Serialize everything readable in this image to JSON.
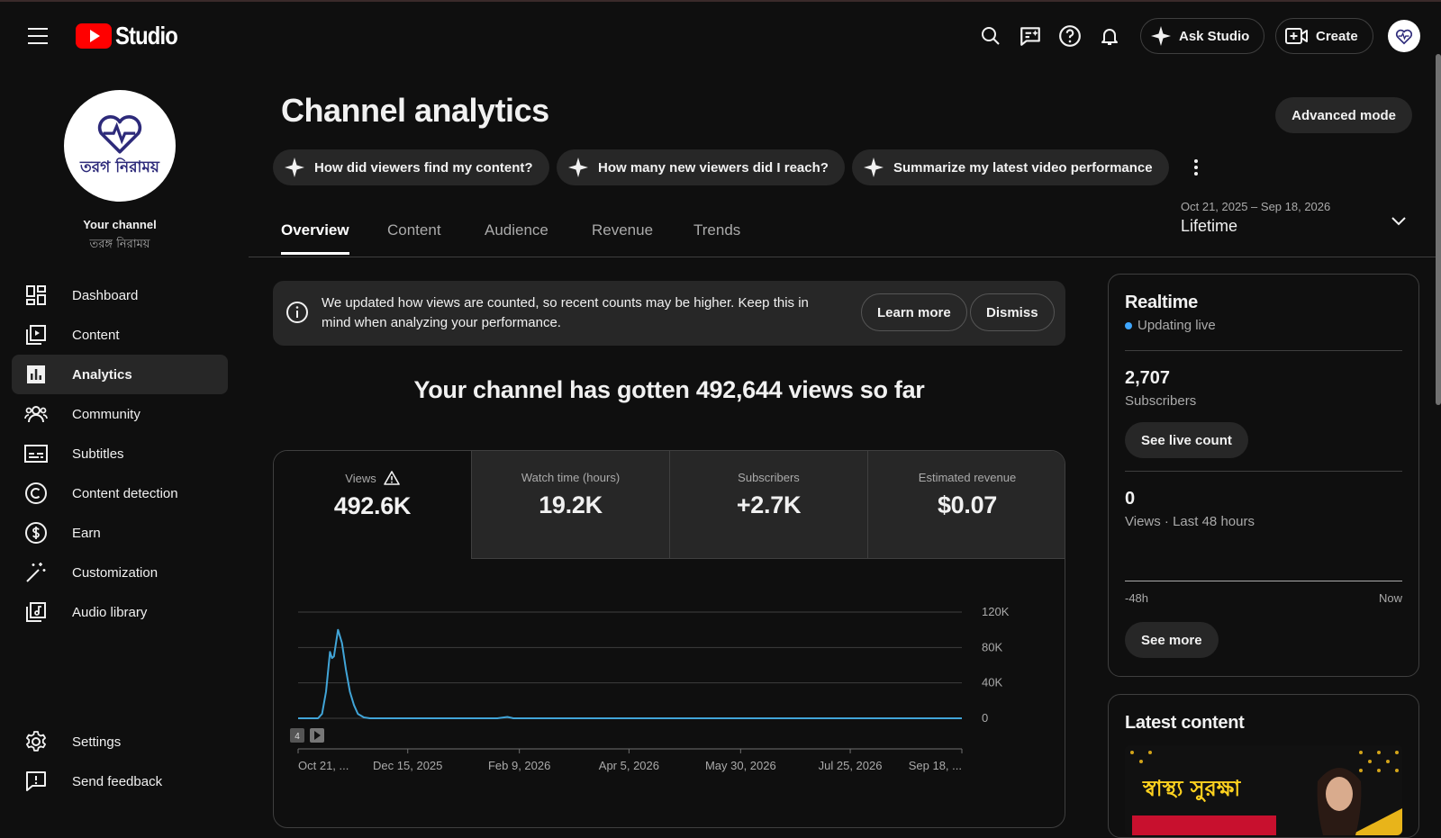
{
  "app": {
    "logo_text": "Studio"
  },
  "header": {
    "ask_studio_label": "Ask Studio",
    "create_label": "Create",
    "avatar_text": "তরঙ্গ নিরাময়"
  },
  "sidebar": {
    "channel_label": "Your channel",
    "channel_name": "তরঙ্গ নিরাময়",
    "channel_logo_text": "তরগ নিরাময়",
    "items": [
      {
        "label": "Dashboard",
        "icon": "dashboard-icon"
      },
      {
        "label": "Content",
        "icon": "content-icon"
      },
      {
        "label": "Analytics",
        "icon": "analytics-icon",
        "active": true
      },
      {
        "label": "Community",
        "icon": "community-icon"
      },
      {
        "label": "Subtitles",
        "icon": "subtitles-icon"
      },
      {
        "label": "Content detection",
        "icon": "copyright-icon"
      },
      {
        "label": "Earn",
        "icon": "dollar-icon"
      },
      {
        "label": "Customization",
        "icon": "magic-wand-icon"
      },
      {
        "label": "Audio library",
        "icon": "audio-library-icon"
      }
    ],
    "settings_label": "Settings",
    "feedback_label": "Send feedback"
  },
  "main": {
    "title": "Channel analytics",
    "advanced_mode_label": "Advanced mode",
    "ask_chips": [
      "How did viewers find my content?",
      "How many new viewers did I reach?",
      "Summarize my latest video performance"
    ],
    "tabs": [
      "Overview",
      "Content",
      "Audience",
      "Revenue",
      "Trends"
    ],
    "active_tab": "Overview",
    "date_range": {
      "range": "Oct 21, 2025 – Sep 18, 2026",
      "label": "Lifetime"
    },
    "notice": {
      "text": "We updated how views are counted, so recent counts may be higher. Keep this in mind when analyzing your performance.",
      "learn_more_label": "Learn more",
      "dismiss_label": "Dismiss"
    },
    "headline": "Your channel has gotten 492,644 views so far",
    "metrics": [
      {
        "label": "Views",
        "value": "492.6K",
        "warning": true
      },
      {
        "label": "Watch time (hours)",
        "value": "19.2K"
      },
      {
        "label": "Subscribers",
        "value": "+2.7K"
      },
      {
        "label": "Estimated revenue",
        "value": "$0.07"
      }
    ],
    "chart_markers": [
      "4"
    ]
  },
  "chart_data": {
    "type": "line",
    "title": "",
    "xlabel": "",
    "ylabel": "",
    "x_ticks": [
      "Oct 21, ...",
      "Dec 15, 2025",
      "Feb 9, 2026",
      "Apr 5, 2026",
      "May 30, 2026",
      "Jul 25, 2026",
      "Sep 18, ..."
    ],
    "y_ticks": [
      "0",
      "40K",
      "80K",
      "120K"
    ],
    "ylim": [
      0,
      120000
    ],
    "grid": true,
    "color": "#41a5d8",
    "series": [
      {
        "values_by_day_index": [
          [
            0,
            0
          ],
          [
            10,
            0
          ],
          [
            12,
            5000
          ],
          [
            14,
            30000
          ],
          [
            16,
            75000
          ],
          [
            17,
            68000
          ],
          [
            18,
            70000
          ],
          [
            20,
            100000
          ],
          [
            22,
            85000
          ],
          [
            24,
            55000
          ],
          [
            26,
            30000
          ],
          [
            28,
            15000
          ],
          [
            30,
            5000
          ],
          [
            33,
            1000
          ],
          [
            36,
            0
          ],
          [
            100,
            0
          ],
          [
            105,
            1500
          ],
          [
            108,
            0
          ],
          [
            333,
            0
          ]
        ]
      }
    ]
  },
  "realtime": {
    "title": "Realtime",
    "status": "Updating live",
    "subscribers_value": "2,707",
    "subscribers_label": "Subscribers",
    "live_count_label": "See live count",
    "views_value": "0",
    "views_label": "Views · Last 48 hours",
    "axis_left": "-48h",
    "axis_right": "Now",
    "see_more_label": "See more"
  },
  "latest_content": {
    "title": "Latest content",
    "thumbnail_text": "স্বাস্থ্য সুরক্ষা"
  }
}
